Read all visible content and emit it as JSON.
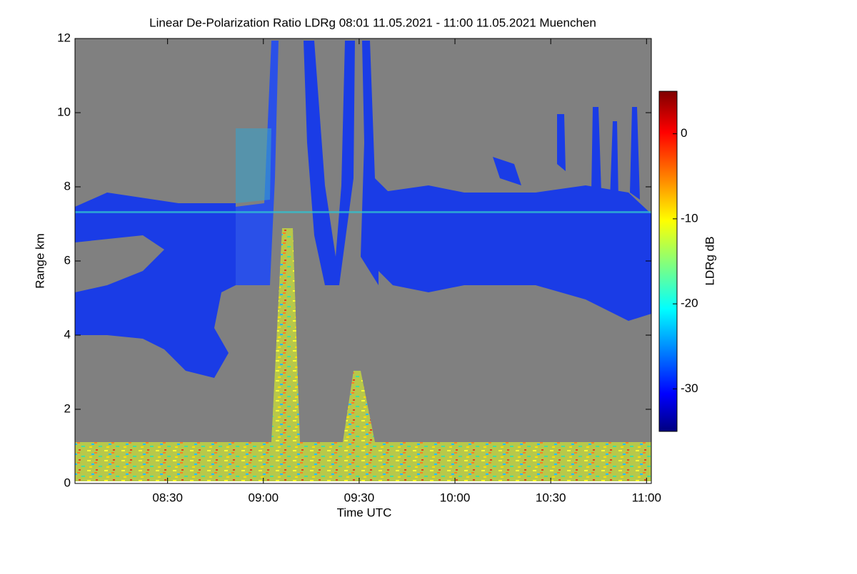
{
  "chart_data": {
    "type": "heatmap",
    "title": "Linear De-Polarization Ratio LDRg   08:01 11.05.2021 - 11:00 11.05.2021 Muenchen",
    "x_label": "Time UTC",
    "y_label": "Range km",
    "xlim": [
      8.0167,
      11.025
    ],
    "xticks": [
      {
        "value": 8.5,
        "label": "08:30"
      },
      {
        "value": 9,
        "label": "09:00"
      },
      {
        "value": 9.5,
        "label": "09:30"
      },
      {
        "value": 10,
        "label": "10:00"
      },
      {
        "value": 10.5,
        "label": "10:30"
      },
      {
        "value": 11,
        "label": "11:00"
      }
    ],
    "ylim": [
      0,
      12
    ],
    "yticks": [
      0,
      2,
      4,
      6,
      8,
      10,
      12
    ],
    "colorbar": {
      "label": "LDRg dB",
      "lim": [
        -35,
        5
      ],
      "ticks": [
        0,
        -10,
        -20,
        -30
      ]
    }
  }
}
